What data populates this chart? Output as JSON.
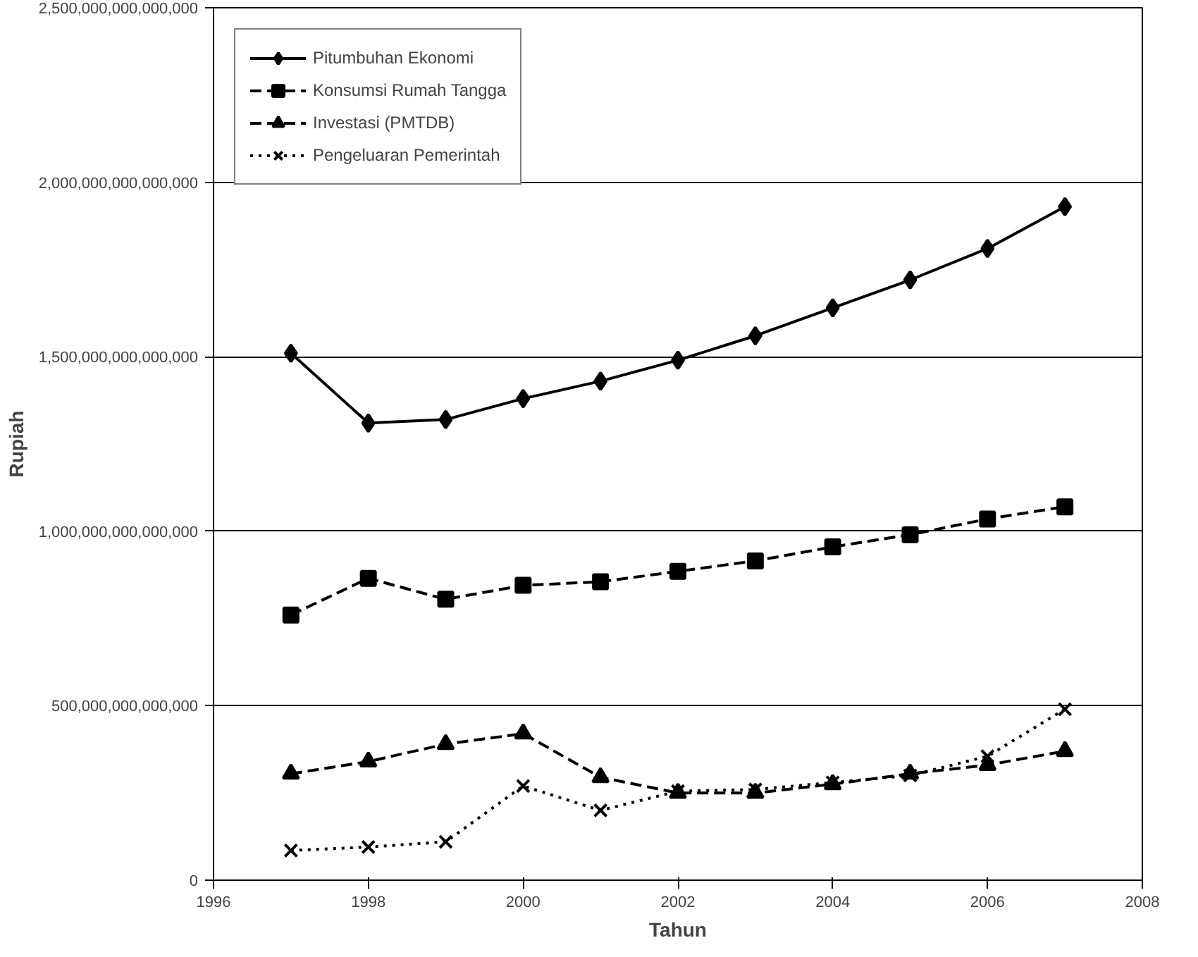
{
  "chart_data": {
    "type": "line",
    "xlabel": "Tahun",
    "ylabel": "Rupiah",
    "xlim": [
      1996,
      2008
    ],
    "xticks": [
      1996,
      1998,
      2000,
      2002,
      2004,
      2006,
      2008
    ],
    "ylim": [
      0,
      2500000000000000
    ],
    "yticks": [
      {
        "value": 0,
        "label": "0"
      },
      {
        "value": 500000000000000,
        "label": "500,000,000,000,000"
      },
      {
        "value": 1000000000000000,
        "label": "1,000,000,000,000,000"
      },
      {
        "value": 1500000000000000,
        "label": "1,500,000,000,000,000"
      },
      {
        "value": 2000000000000000,
        "label": "2,000,000,000,000,000"
      },
      {
        "value": 2500000000000000,
        "label": "2,500,000,000,000,000"
      }
    ],
    "grid": "y",
    "legend": "top left",
    "x": [
      1997,
      1998,
      1999,
      2000,
      2001,
      2002,
      2003,
      2004,
      2005,
      2006,
      2007
    ],
    "series": [
      {
        "name": "Pitumbuhan Ekonomi",
        "color": "#000000",
        "marker": "diamond",
        "line_style": "solid",
        "values": [
          1510000000000000,
          1310000000000000,
          1320000000000000,
          1380000000000000,
          1430000000000000,
          1490000000000000,
          1560000000000000,
          1640000000000000,
          1720000000000000,
          1810000000000000,
          1930000000000000
        ]
      },
      {
        "name": "Konsumsi Rumah Tangga",
        "color": "#000000",
        "marker": "square",
        "line_style": "dashed",
        "values": [
          760000000000000,
          865000000000000,
          805000000000000,
          845000000000000,
          855000000000000,
          885000000000000,
          915000000000000,
          955000000000000,
          990000000000000,
          1035000000000000,
          1070000000000000
        ]
      },
      {
        "name": "Investasi (PMTDB)",
        "color": "#000000",
        "marker": "triangle",
        "line_style": "dashed",
        "values": [
          305000000000000,
          340000000000000,
          390000000000000,
          420000000000000,
          295000000000000,
          250000000000000,
          250000000000000,
          275000000000000,
          305000000000000,
          330000000000000,
          370000000000000
        ]
      },
      {
        "name": "Pengeluaran Pemerintah",
        "color": "#000000",
        "marker": "cross",
        "line_style": "dotted",
        "values": [
          85000000000000,
          95000000000000,
          110000000000000,
          270000000000000,
          200000000000000,
          255000000000000,
          260000000000000,
          280000000000000,
          300000000000000,
          355000000000000,
          490000000000000
        ]
      }
    ]
  }
}
